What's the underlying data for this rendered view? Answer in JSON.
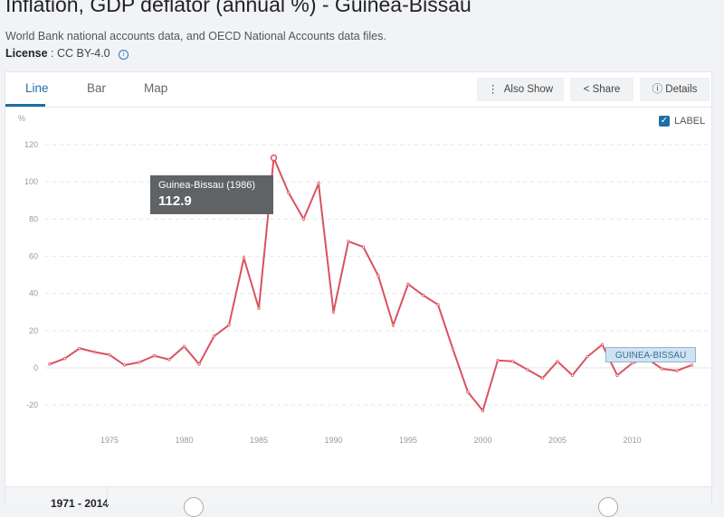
{
  "header": {
    "title": "Inflation, GDP deflator (annual %) - Guinea-Bissau",
    "source": "World Bank national accounts data, and OECD National Accounts data files.",
    "license_label": "License",
    "license_value": ": CC BY-4.0"
  },
  "tabs": [
    {
      "label": "Line"
    },
    {
      "label": "Bar"
    },
    {
      "label": "Map"
    }
  ],
  "toolbar": {
    "also_show": "Also Show",
    "share": "Share",
    "details": "Details"
  },
  "label_toggle": {
    "label": "LABEL",
    "checked": true
  },
  "footer": {
    "range": "1971 - 2014"
  },
  "colors": {
    "series": "#d9535f",
    "accent": "#1d6fa5"
  },
  "chart_data": {
    "type": "line",
    "title": "Inflation, GDP deflator (annual %) - Guinea-Bissau",
    "ylabel": "%",
    "xlabel": "",
    "ylim": [
      -20,
      120
    ],
    "yticks": [
      "120",
      "100",
      "80",
      "60",
      "40",
      "20",
      "0",
      "-20"
    ],
    "ytick_values": [
      120,
      100,
      80,
      60,
      40,
      20,
      0,
      -20
    ],
    "xticks": [
      "1975",
      "1980",
      "1985",
      "1990",
      "1995",
      "2000",
      "2005",
      "2010"
    ],
    "xtick_values": [
      1975,
      1980,
      1985,
      1990,
      1995,
      2000,
      2005,
      2010
    ],
    "grid": true,
    "series": [
      {
        "name": "GUINEA-BISSAU",
        "x": [
          1971,
          1972,
          1973,
          1974,
          1975,
          1976,
          1977,
          1978,
          1979,
          1980,
          1981,
          1982,
          1983,
          1984,
          1985,
          1986,
          1987,
          1988,
          1989,
          1990,
          1991,
          1992,
          1993,
          1994,
          1995,
          1996,
          1997,
          1998,
          1999,
          2000,
          2001,
          2002,
          2003,
          2004,
          2005,
          2006,
          2007,
          2008,
          2009,
          2010,
          2011,
          2012,
          2013,
          2014
        ],
        "values": [
          2,
          5,
          10.5,
          8.5,
          7,
          1.5,
          3,
          6.5,
          4.5,
          11.5,
          2,
          17,
          23,
          59,
          32,
          112.9,
          94,
          80,
          99,
          30,
          68,
          65,
          49.5,
          23,
          45,
          39,
          34,
          10,
          -13,
          -23,
          4,
          3.5,
          -1,
          -5.5,
          3.5,
          -4,
          6,
          12.5,
          -4,
          2.5,
          5,
          -0.5,
          -1.5,
          1.5
        ]
      }
    ],
    "tooltip": {
      "title": "Guinea-Bissau (1986)",
      "value": "112.9"
    },
    "series_label": "GUINEA-BISSAU"
  }
}
